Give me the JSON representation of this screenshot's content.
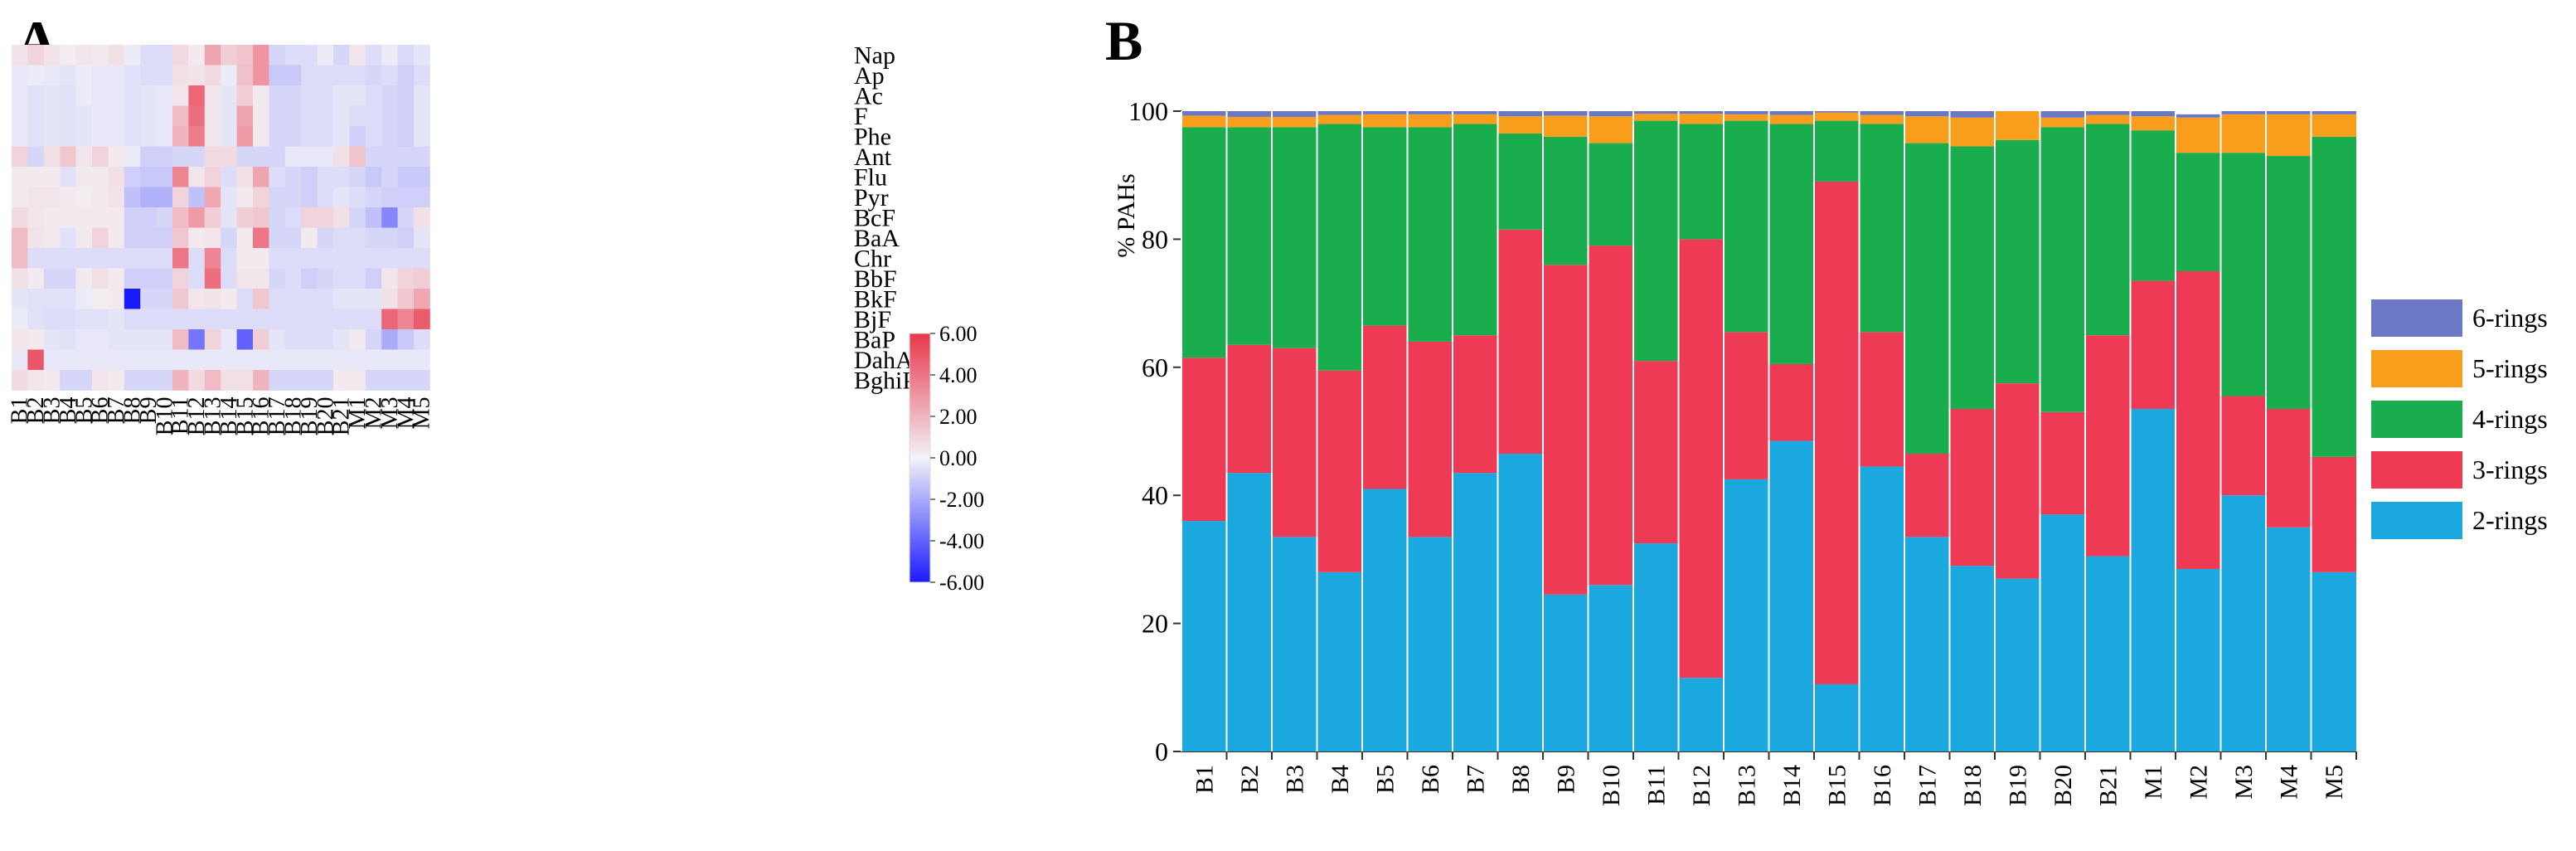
{
  "panels": {
    "a": "A",
    "b": "B"
  },
  "colors": {
    "ring6": "#6a78c6",
    "ring5": "#f99d1c",
    "ring4": "#1aad4e",
    "ring3": "#ee3a55",
    "ring2": "#1aa8de",
    "heat_neg": "#1a1aff",
    "heat_zero": "#f3f3f8",
    "heat_pos": "#e8374a"
  },
  "chart_data": [
    {
      "type": "heatmap",
      "panel": "A",
      "x": [
        "B1",
        "B2",
        "B3",
        "B4",
        "B5",
        "B6",
        "B7",
        "B8",
        "B9",
        "B10",
        "B11",
        "B12",
        "B13",
        "B14",
        "B15",
        "B16",
        "B17",
        "B18",
        "B19",
        "B20",
        "B21",
        "M1",
        "M2",
        "M3",
        "M4",
        "M5"
      ],
      "y": [
        "Nap",
        "Ap",
        "Ac",
        "F",
        "Phe",
        "Ant",
        "Flu",
        "Pyr",
        "BcF",
        "BaA",
        "Chr",
        "BbF",
        "BkF",
        "BjF",
        "BaP",
        "DahA",
        "BghiPE"
      ],
      "z": [
        [
          0.5,
          1.0,
          0.5,
          0.2,
          0.4,
          0.3,
          0.6,
          -0.2,
          -0.6,
          -0.6,
          0.8,
          0.3,
          2.5,
          1.2,
          1.5,
          3.0,
          -0.8,
          -0.6,
          -0.6,
          -0.2,
          -0.8,
          0.4,
          -0.6,
          -0.2,
          -0.7,
          -0.4
        ],
        [
          -0.3,
          -0.2,
          -0.3,
          -0.4,
          -0.2,
          -0.3,
          -0.3,
          -0.5,
          -0.6,
          -0.6,
          0.6,
          0.5,
          0.8,
          -0.2,
          1.6,
          3.0,
          -1.2,
          -1.2,
          -0.6,
          -0.6,
          -0.6,
          -0.6,
          -0.8,
          -0.6,
          -1.0,
          -0.6
        ],
        [
          -0.3,
          -0.5,
          -0.4,
          -0.5,
          -0.2,
          -0.3,
          -0.3,
          -0.5,
          -0.4,
          -0.3,
          0.4,
          4.5,
          0.4,
          -0.4,
          1.2,
          0.3,
          -0.8,
          -0.8,
          -0.6,
          -0.6,
          -0.4,
          -0.4,
          -0.6,
          -0.8,
          -1.0,
          -0.4
        ],
        [
          -0.3,
          -0.5,
          -0.4,
          -0.5,
          -0.4,
          -0.3,
          -0.3,
          -0.5,
          -0.4,
          -0.3,
          1.8,
          4.2,
          0.4,
          -0.4,
          2.5,
          0.3,
          -0.8,
          -0.8,
          -0.6,
          -0.6,
          -0.4,
          -0.6,
          -0.6,
          -0.8,
          -1.0,
          -0.4
        ],
        [
          -0.3,
          -0.5,
          -0.4,
          -0.5,
          -0.4,
          -0.3,
          -0.3,
          -0.5,
          -0.4,
          -0.3,
          2.0,
          3.8,
          0.4,
          -0.4,
          2.8,
          0.3,
          -0.8,
          -0.8,
          -0.6,
          -0.6,
          -0.4,
          -1.0,
          -0.6,
          -0.8,
          -1.0,
          -0.4
        ],
        [
          1.0,
          -0.8,
          0.6,
          1.4,
          0.4,
          1.0,
          0.3,
          -0.2,
          -1.0,
          -1.0,
          -0.8,
          -0.8,
          0.8,
          0.8,
          -0.8,
          -0.8,
          -0.8,
          -0.3,
          -0.3,
          -0.3,
          0.6,
          1.5,
          -0.8,
          -0.8,
          -0.8,
          -0.8
        ],
        [
          0.3,
          0.3,
          0.3,
          -0.5,
          0.3,
          0.3,
          0.6,
          -1.0,
          -1.2,
          -1.2,
          3.5,
          0.4,
          1.0,
          -0.6,
          0.6,
          2.5,
          -0.6,
          -0.8,
          -1.0,
          -0.6,
          -0.6,
          -0.8,
          -1.2,
          -0.8,
          -1.2,
          -1.2
        ],
        [
          0.3,
          0.4,
          0.4,
          0.3,
          0.2,
          0.3,
          0.5,
          -1.4,
          -1.8,
          -1.8,
          1.0,
          -1.4,
          2.4,
          -0.4,
          0.3,
          1.0,
          -0.8,
          -0.8,
          -1.0,
          -0.6,
          -0.4,
          -0.6,
          -0.8,
          -1.0,
          -1.0,
          -1.0
        ],
        [
          0.8,
          0.4,
          0.3,
          0.3,
          0.3,
          0.3,
          0.3,
          -1.0,
          -1.0,
          -0.8,
          1.8,
          2.8,
          1.2,
          -0.4,
          1.2,
          1.4,
          -0.8,
          -0.6,
          1.0,
          1.0,
          0.6,
          -0.8,
          -1.4,
          -3.0,
          -0.8,
          0.6
        ],
        [
          1.8,
          0.5,
          0.3,
          -0.5,
          0.3,
          1.0,
          0.3,
          -1.0,
          -1.0,
          -1.0,
          1.4,
          0.3,
          0.4,
          -0.8,
          0.3,
          4.0,
          -0.8,
          -0.8,
          0.3,
          -0.8,
          -0.6,
          -0.6,
          -0.8,
          -0.8,
          -1.0,
          -0.4
        ],
        [
          1.8,
          -0.6,
          -0.6,
          -0.6,
          -0.6,
          -0.6,
          -0.6,
          -0.6,
          -0.6,
          -0.6,
          4.0,
          -0.6,
          3.5,
          -0.6,
          0.3,
          0.3,
          -0.6,
          -0.6,
          -0.6,
          -0.6,
          -0.6,
          -0.6,
          -0.6,
          -0.6,
          -0.6,
          -0.6
        ],
        [
          0.6,
          0.3,
          -0.8,
          -0.8,
          0.3,
          0.6,
          0.3,
          -1.0,
          -1.0,
          -1.0,
          1.0,
          -0.6,
          4.2,
          -0.6,
          0.4,
          0.4,
          -0.8,
          -0.6,
          -1.0,
          -0.8,
          -0.6,
          -0.6,
          -1.0,
          0.4,
          1.0,
          1.2
        ],
        [
          -0.4,
          -0.5,
          -0.5,
          -0.5,
          -0.2,
          0.2,
          0.3,
          -6.0,
          -0.8,
          -0.8,
          1.4,
          0.4,
          0.5,
          0.3,
          -0.6,
          1.4,
          -0.6,
          -0.6,
          -0.6,
          -0.6,
          -0.4,
          -0.4,
          -0.4,
          0.6,
          1.4,
          2.4
        ],
        [
          -0.2,
          -0.5,
          -0.6,
          -0.6,
          -0.5,
          -0.5,
          -0.4,
          -0.6,
          -0.6,
          -0.6,
          -0.6,
          -0.6,
          -0.6,
          -0.6,
          -0.6,
          -0.6,
          -0.6,
          -0.6,
          -0.6,
          -0.6,
          -0.6,
          -0.6,
          -0.6,
          4.5,
          3.5,
          4.8
        ],
        [
          0.4,
          0.3,
          -0.4,
          -0.5,
          -0.3,
          -0.3,
          -0.4,
          -0.4,
          -0.4,
          -0.4,
          1.8,
          -3.5,
          1.0,
          -0.3,
          -4.0,
          1.2,
          -0.4,
          -0.6,
          -0.6,
          -0.6,
          -0.4,
          0.3,
          -0.8,
          -2.0,
          -1.2,
          -0.6
        ],
        [
          -0.3,
          5.0,
          -0.3,
          -0.3,
          -0.3,
          -0.3,
          -0.3,
          -0.3,
          -0.3,
          -0.3,
          -0.3,
          -0.3,
          -0.3,
          -0.3,
          -0.3,
          -0.3,
          -0.3,
          -0.3,
          -0.3,
          -0.3,
          -0.3,
          -0.3,
          -0.3,
          -0.3,
          -0.3,
          -0.3
        ],
        [
          0.8,
          0.4,
          0.3,
          -0.8,
          -0.8,
          0.4,
          0.3,
          -0.8,
          -0.8,
          -0.8,
          2.0,
          0.8,
          1.8,
          0.6,
          0.6,
          2.0,
          -0.8,
          -0.8,
          -0.8,
          -0.8,
          0.3,
          0.3,
          -0.8,
          -0.8,
          -0.8,
          -0.8
        ]
      ],
      "zlim": [
        -6,
        6
      ],
      "colorbar_ticks": [
        "6.00",
        "4.00",
        "2.00",
        "0.00",
        "-2.00",
        "-4.00",
        "-6.00"
      ]
    },
    {
      "type": "bar",
      "stacked": true,
      "panel": "B",
      "categories": [
        "B1",
        "B2",
        "B3",
        "B4",
        "B5",
        "B6",
        "B7",
        "B8",
        "B9",
        "B10",
        "B11",
        "B12",
        "B13",
        "B14",
        "B15",
        "B16",
        "B17",
        "B18",
        "B19",
        "B20",
        "B21",
        "M1",
        "M2",
        "M3",
        "M4",
        "M5"
      ],
      "series": [
        {
          "name": "2-rings",
          "color_key": "ring2",
          "values": [
            36,
            43.5,
            33.5,
            28,
            41,
            33.5,
            43.5,
            46.5,
            24.5,
            26,
            32.5,
            11.5,
            42.5,
            48.5,
            10.5,
            44.5,
            33.5,
            29,
            27,
            37,
            30.5,
            53.5,
            28.5,
            40,
            35,
            28
          ]
        },
        {
          "name": "3-rings",
          "color_key": "ring3",
          "values": [
            25.5,
            20,
            29.5,
            31.5,
            25.5,
            30.5,
            21.5,
            35,
            51.5,
            53,
            28.5,
            68.5,
            23,
            12,
            78.5,
            21,
            13,
            24.5,
            30.5,
            16,
            34.5,
            20,
            46.5,
            15.5,
            18.5,
            18
          ]
        },
        {
          "name": "4-rings",
          "color_key": "ring4",
          "values": [
            36,
            34,
            34.5,
            38.5,
            31,
            33.5,
            33,
            15,
            20,
            16,
            37.5,
            18,
            33,
            37.5,
            9.5,
            32.5,
            48.5,
            41,
            38,
            44.5,
            33,
            23.5,
            18.5,
            38,
            39.5,
            50
          ]
        },
        {
          "name": "5-rings",
          "color_key": "ring5",
          "values": [
            1.8,
            1.6,
            1.6,
            1.4,
            2,
            2,
            1.5,
            2.7,
            3.3,
            4.2,
            1.1,
            1.6,
            1,
            1.4,
            1.3,
            1.4,
            4.2,
            4.5,
            4.5,
            1.5,
            1.4,
            2.2,
            5.5,
            6,
            6.5,
            3.5
          ]
        },
        {
          "name": "6-rings",
          "color_key": "ring6",
          "values": [
            0.7,
            0.9,
            0.9,
            0.6,
            0.5,
            0.5,
            0.5,
            0.8,
            0.7,
            0.8,
            0.4,
            0.4,
            0.5,
            0.6,
            0.2,
            0.6,
            0.8,
            1,
            0,
            1,
            0.6,
            0.8,
            0.5,
            0.5,
            0.5,
            0.5
          ]
        }
      ],
      "ylabel": "% PAHs",
      "ylim": [
        0,
        100
      ],
      "yticks": [
        0,
        20,
        40,
        60,
        80,
        100
      ],
      "legend": [
        "6-rings",
        "5-rings",
        "4-rings",
        "3-rings",
        "2-rings"
      ],
      "legend_position": "right"
    }
  ]
}
